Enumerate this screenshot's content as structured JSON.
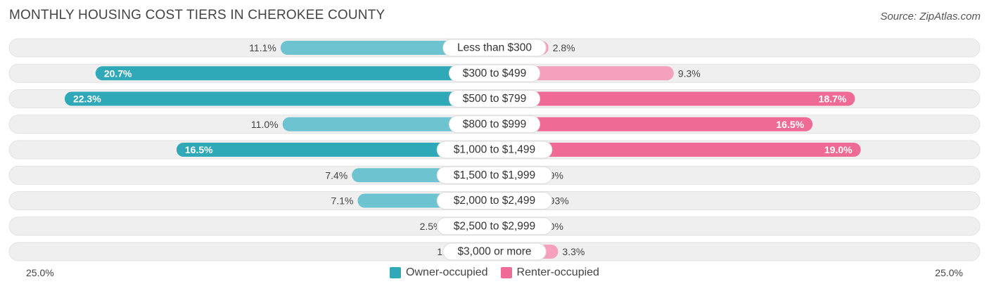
{
  "title": "MONTHLY HOUSING COST TIERS IN CHEROKEE COUNTY",
  "source": "Source: ZipAtlas.com",
  "colors": {
    "owner": "#2fa8b8",
    "owner_light": "#6dc4d0",
    "renter": "#f06a96",
    "renter_light": "#f5a0bc",
    "track": "#efefef"
  },
  "chart_data": {
    "type": "bar",
    "orientation": "horizontal-diverging",
    "xlim": [
      -25.0,
      25.0
    ],
    "axis_labels": {
      "left": "25.0%",
      "right": "25.0%"
    },
    "categories": [
      "Less than $300",
      "$300 to $499",
      "$500 to $799",
      "$800 to $999",
      "$1,000 to $1,499",
      "$1,500 to $1,999",
      "$2,000 to $2,499",
      "$2,500 to $2,999",
      "$3,000 or more"
    ],
    "series": [
      {
        "name": "Owner-occupied",
        "values": [
          11.1,
          20.7,
          22.3,
          11.0,
          16.5,
          7.4,
          7.1,
          2.5,
          1.6
        ],
        "labels": [
          "11.1%",
          "20.7%",
          "22.3%",
          "11.0%",
          "16.5%",
          "7.4%",
          "7.1%",
          "2.5%",
          "1.6%"
        ]
      },
      {
        "name": "Renter-occupied",
        "values": [
          2.8,
          9.3,
          18.7,
          16.5,
          19.0,
          1.9,
          0.93,
          0.0,
          3.3
        ],
        "labels": [
          "2.8%",
          "9.3%",
          "18.7%",
          "16.5%",
          "19.0%",
          "1.9%",
          "0.93%",
          "0.0%",
          "3.3%"
        ]
      }
    ],
    "legend": [
      "Owner-occupied",
      "Renter-occupied"
    ],
    "legend_position": "bottom-center"
  }
}
